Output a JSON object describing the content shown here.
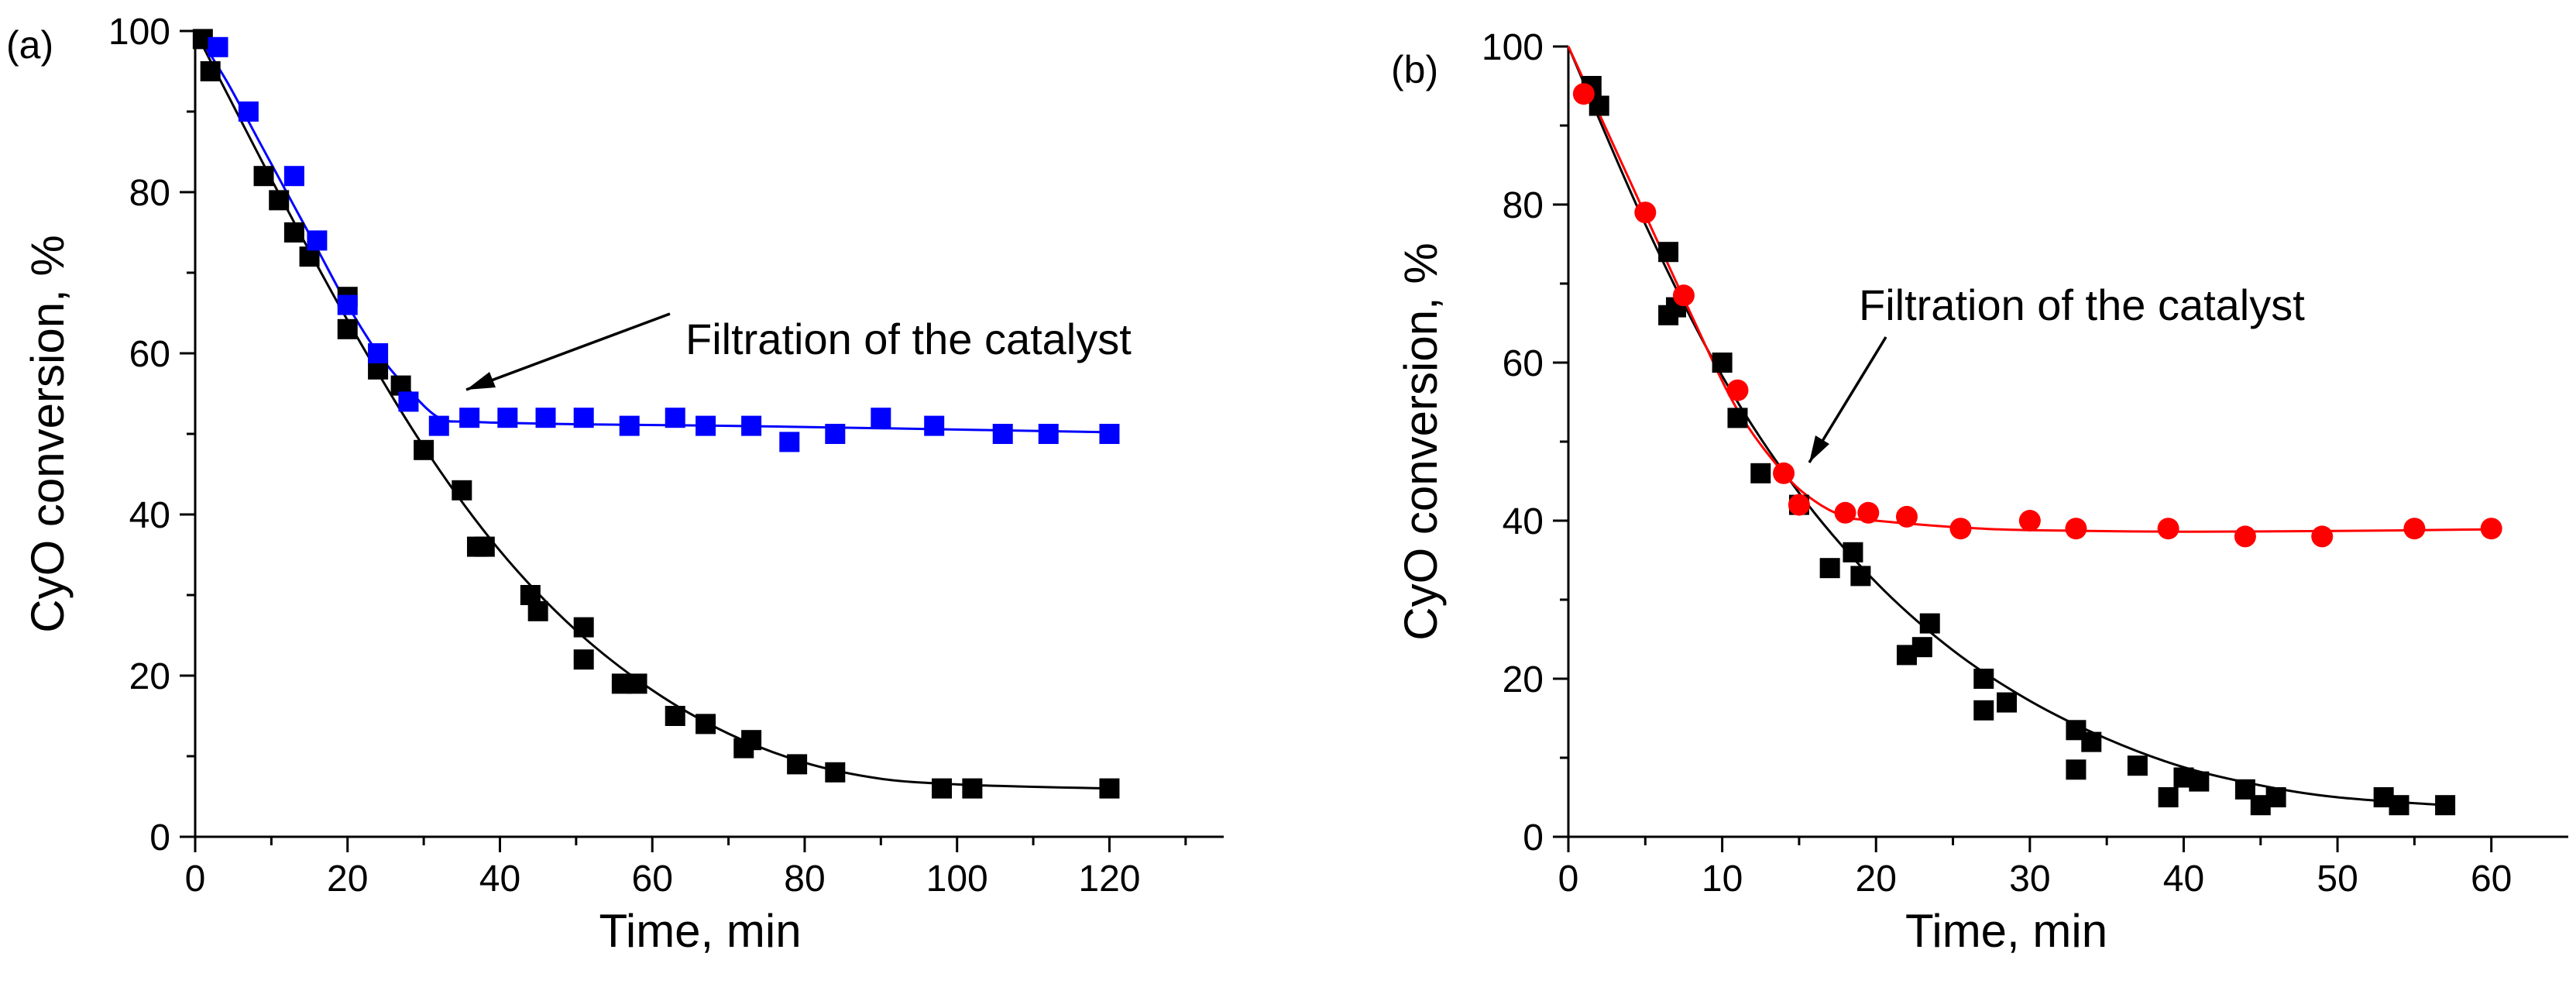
{
  "chart_data": [
    {
      "type": "scatter",
      "panel_label": "(a)",
      "xlabel": "Time, min",
      "ylabel": "CyO conversion, %",
      "xlim": [
        0,
        135
      ],
      "ylim": [
        0,
        100
      ],
      "xticks": [
        "0",
        "20",
        "40",
        "60",
        "80",
        "100",
        "120"
      ],
      "yticks": [
        "0",
        "20",
        "40",
        "60",
        "80",
        "100"
      ],
      "annotation": "Filtration of the catalyst",
      "series": [
        {
          "name": "black-squares",
          "color": "#000000",
          "marker": "square",
          "x": [
            1,
            2,
            9,
            11,
            13,
            15,
            20,
            20,
            24,
            27,
            30,
            35,
            37,
            38,
            44,
            45,
            51,
            51,
            56,
            58,
            63,
            67,
            72,
            73,
            79,
            84,
            98,
            102,
            120
          ],
          "y": [
            99,
            95,
            82,
            79,
            75,
            72,
            67,
            63,
            58,
            56,
            48,
            43,
            36,
            36,
            30,
            28,
            26,
            22,
            19,
            19,
            15,
            14,
            11,
            12,
            9,
            8,
            6,
            6,
            6
          ],
          "curve_x": [
            0,
            10,
            20,
            30,
            40,
            50,
            60,
            70,
            80,
            90,
            100,
            110,
            120
          ],
          "curve_y": [
            100,
            81.6,
            64.1,
            48.4,
            35.5,
            25.6,
            18.2,
            12.8,
            9.2,
            7.2,
            6.5,
            6.2,
            6.0
          ]
        },
        {
          "name": "blue-squares",
          "color": "#0000ff",
          "marker": "square",
          "x": [
            3,
            7,
            13,
            16,
            20,
            24,
            28,
            32,
            36,
            41,
            46,
            51,
            57,
            63,
            67,
            73,
            78,
            84,
            90,
            97,
            106,
            112,
            120
          ],
          "y": [
            98,
            90,
            82,
            74,
            66,
            60,
            54,
            51,
            52,
            52,
            52,
            52,
            51,
            52,
            51,
            51,
            49,
            50,
            52,
            51,
            50,
            50,
            50
          ],
          "curve_x": [
            0,
            4,
            8,
            12,
            16,
            20,
            24,
            28,
            32,
            36,
            50,
            70,
            90,
            120
          ],
          "curve_y": [
            100,
            94,
            87,
            80,
            73,
            66,
            60,
            55.5,
            52,
            51.5,
            51.2,
            51,
            50.7,
            50.2
          ]
        }
      ]
    },
    {
      "type": "scatter",
      "panel_label": "(b)",
      "xlabel": "Time, min",
      "ylabel": "CyO conversion, %",
      "xlim": [
        0,
        65
      ],
      "ylim": [
        0,
        100
      ],
      "xticks": [
        "0",
        "10",
        "20",
        "30",
        "40",
        "50",
        "60"
      ],
      "yticks": [
        "0",
        "20",
        "40",
        "60",
        "80",
        "100"
      ],
      "annotation": "Filtration of the catalyst",
      "series": [
        {
          "name": "black-squares",
          "color": "#000000",
          "marker": "square",
          "x": [
            1.5,
            2,
            6.5,
            6.5,
            7,
            10,
            11,
            12.5,
            15,
            17,
            18.5,
            19,
            22,
            23,
            23.5,
            27,
            27,
            28.5,
            33,
            33,
            34,
            37,
            39,
            40,
            41,
            44,
            45,
            46,
            53,
            54,
            57
          ],
          "y": [
            95,
            92.5,
            74,
            66,
            67,
            60,
            53,
            46,
            42,
            34,
            36,
            33,
            23,
            24,
            27,
            20,
            16,
            17,
            13.5,
            8.5,
            12,
            9,
            5,
            7.5,
            7,
            6,
            4,
            5,
            5,
            4,
            4
          ],
          "curve_x": [
            0,
            5,
            10,
            15,
            20,
            25,
            30,
            35,
            40,
            45,
            50,
            57
          ],
          "curve_y": [
            100,
            77.5,
            58.3,
            43.5,
            32.2,
            23.6,
            17.2,
            12.4,
            8.8,
            6.5,
            5,
            4
          ]
        },
        {
          "name": "red-circles",
          "color": "#ff0000",
          "marker": "circle",
          "x": [
            1,
            5,
            7.5,
            11,
            14,
            15,
            18,
            19.5,
            22,
            25.5,
            30,
            33,
            39,
            44,
            49,
            55,
            60
          ],
          "y": [
            94,
            79,
            68.5,
            56.5,
            46,
            42,
            41,
            41,
            40.5,
            39,
            40,
            39,
            39,
            38,
            38,
            39,
            39
          ],
          "curve_x": [
            0,
            4,
            8,
            11,
            14,
            16,
            18,
            20,
            25,
            30,
            40,
            50,
            60
          ],
          "curve_y": [
            100,
            83,
            66,
            54,
            46,
            42.5,
            40.5,
            40,
            39.2,
            38.8,
            38.6,
            38.7,
            38.9
          ]
        }
      ]
    }
  ]
}
